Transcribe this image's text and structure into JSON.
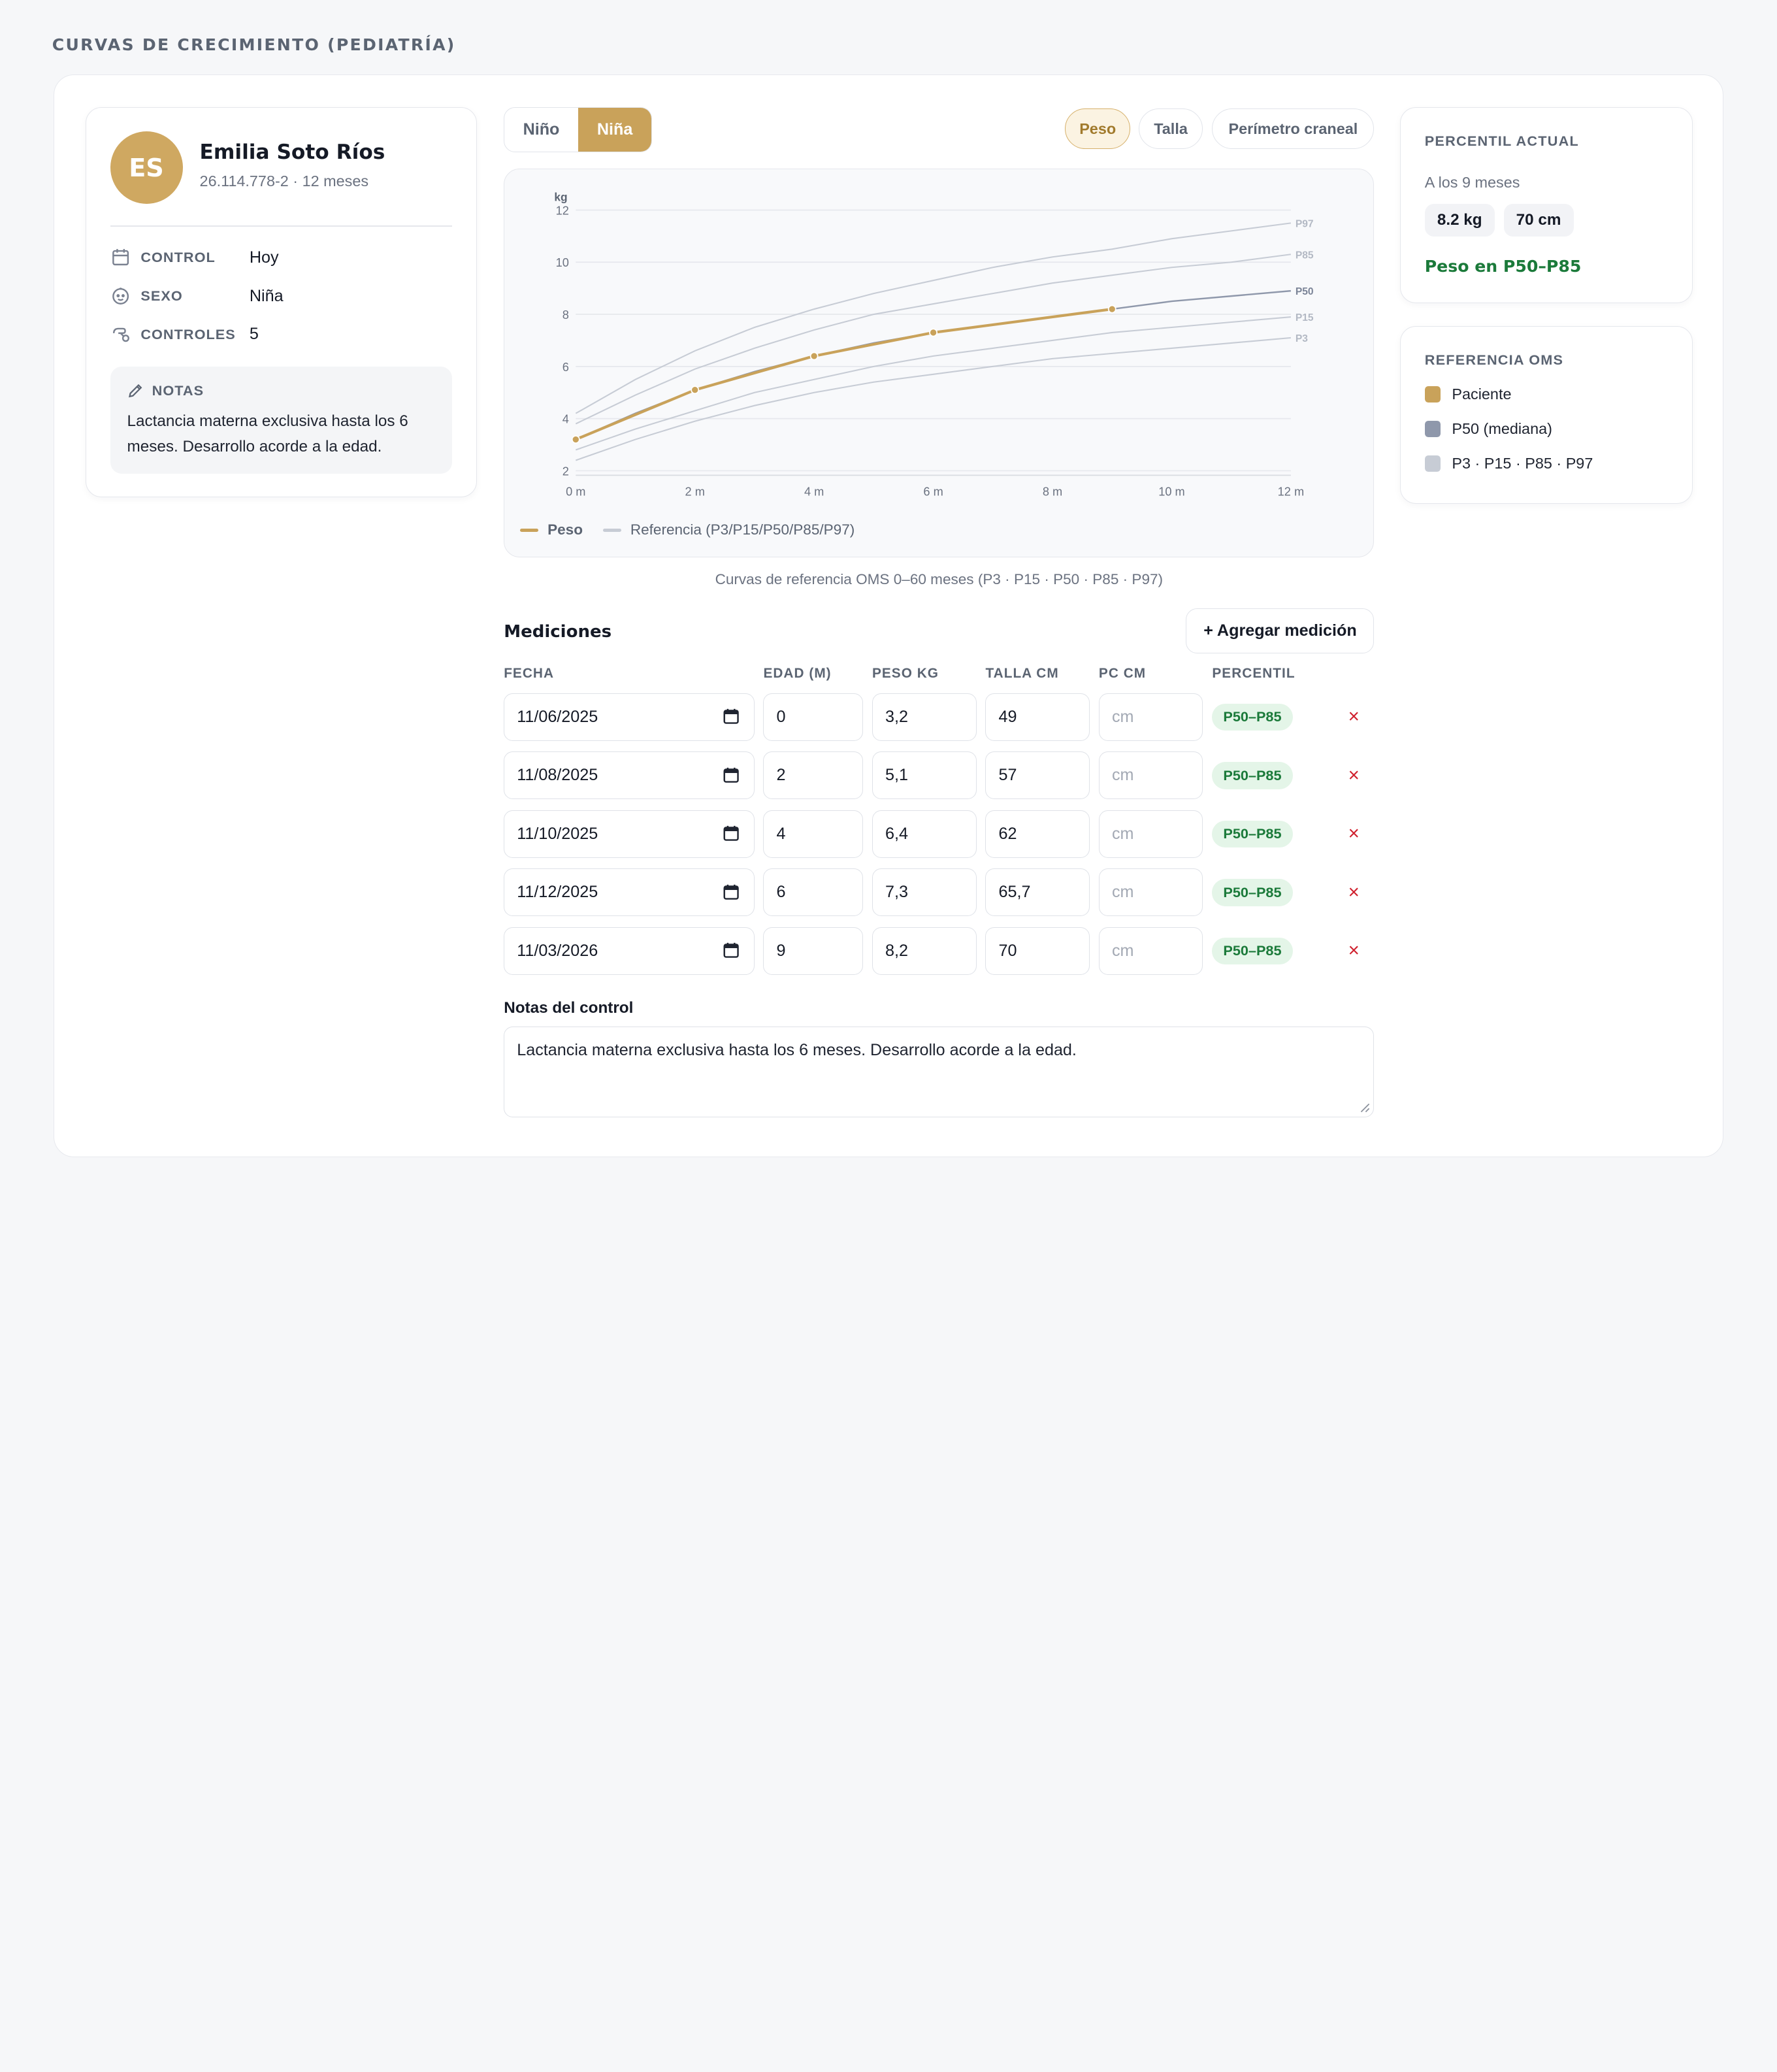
{
  "page": {
    "title": "CURVAS DE CRECIMIENTO (PEDIATRÍA)"
  },
  "patient": {
    "initials": "ES",
    "name": "Emilia Soto Ríos",
    "meta": "26.114.778-2 · 12 meses",
    "info": [
      {
        "icon": "calendar-icon",
        "label": "CONTROL",
        "value": "Hoy"
      },
      {
        "icon": "baby-face-icon",
        "label": "SEXO",
        "value": "Niña"
      },
      {
        "icon": "pacifier-icon",
        "label": "CONTROLES",
        "value": "5"
      }
    ],
    "notes_label": "NOTAS",
    "notes_text": "Lactancia materna exclusiva hasta los 6 meses. Desarrollo acorde a la edad."
  },
  "sex_toggle": {
    "options": [
      "Niño",
      "Niña"
    ],
    "selected": "Niña"
  },
  "metric_tabs": {
    "options": [
      "Peso",
      "Talla",
      "Perímetro craneal"
    ],
    "selected": "Peso"
  },
  "chart_data": {
    "type": "line",
    "ylabel": "kg",
    "ylim": [
      2,
      12
    ],
    "yticks": [
      2,
      4,
      6,
      8,
      10,
      12
    ],
    "xlim": [
      0,
      12
    ],
    "xticks": [
      "0 m",
      "2 m",
      "4 m",
      "6 m",
      "8 m",
      "10 m",
      "12 m"
    ],
    "grid": true,
    "x": [
      0,
      1,
      2,
      3,
      4,
      5,
      6,
      7,
      8,
      9,
      10,
      11,
      12
    ],
    "series": [
      {
        "name": "P97",
        "values": [
          4.2,
          5.5,
          6.6,
          7.5,
          8.2,
          8.8,
          9.3,
          9.8,
          10.2,
          10.5,
          10.9,
          11.2,
          11.5
        ]
      },
      {
        "name": "P85",
        "values": [
          3.8,
          4.9,
          5.9,
          6.7,
          7.4,
          8.0,
          8.4,
          8.8,
          9.2,
          9.5,
          9.8,
          10.0,
          10.3
        ]
      },
      {
        "name": "P50",
        "values": [
          3.2,
          4.2,
          5.1,
          5.8,
          6.4,
          6.9,
          7.3,
          7.6,
          7.9,
          8.2,
          8.5,
          8.7,
          8.9
        ]
      },
      {
        "name": "P15",
        "values": [
          2.8,
          3.6,
          4.3,
          5.0,
          5.5,
          6.0,
          6.4,
          6.7,
          7.0,
          7.3,
          7.5,
          7.7,
          7.9
        ]
      },
      {
        "name": "P3",
        "values": [
          2.4,
          3.2,
          3.9,
          4.5,
          5.0,
          5.4,
          5.7,
          6.0,
          6.3,
          6.5,
          6.7,
          6.9,
          7.1
        ]
      }
    ],
    "patient": {
      "name": "Peso",
      "x": [
        0,
        2,
        4,
        6,
        9
      ],
      "values": [
        3.2,
        5.1,
        6.4,
        7.3,
        8.2
      ]
    },
    "legend": {
      "patient": "Peso",
      "reference": "Referencia (P3/P15/P50/P85/P97)",
      "placement": "bottom-left"
    },
    "colors": {
      "patient": "#c9a25a",
      "p50": "#8f98ab",
      "reference": "#c7ccd5"
    }
  },
  "chart_caption": "Curvas de referencia OMS 0–60 meses (P3 · P15 · P50 · P85 · P97)",
  "measurements": {
    "title": "Mediciones",
    "add_label": "+ Agregar medición",
    "columns": [
      "FECHA",
      "EDAD (M)",
      "PESO KG",
      "TALLA CM",
      "PC CM",
      "PERCENTIL"
    ],
    "pc_placeholder": "cm",
    "rows": [
      {
        "fecha": "11/06/2025",
        "edad": "0",
        "peso": "3,2",
        "talla": "49",
        "pc": "",
        "percentil": "P50–P85"
      },
      {
        "fecha": "11/08/2025",
        "edad": "2",
        "peso": "5,1",
        "talla": "57",
        "pc": "",
        "percentil": "P50–P85"
      },
      {
        "fecha": "11/10/2025",
        "edad": "4",
        "peso": "6,4",
        "talla": "62",
        "pc": "",
        "percentil": "P50–P85"
      },
      {
        "fecha": "11/12/2025",
        "edad": "6",
        "peso": "7,3",
        "talla": "65,7",
        "pc": "",
        "percentil": "P50–P85"
      },
      {
        "fecha": "11/03/2026",
        "edad": "9",
        "peso": "8,2",
        "talla": "70",
        "pc": "",
        "percentil": "P50–P85"
      }
    ],
    "delete_glyph": "×"
  },
  "control_notes": {
    "label": "Notas del control",
    "value": "Lactancia materna exclusiva hasta los 6 meses. Desarrollo acorde a la edad."
  },
  "current_percentile": {
    "title": "PERCENTIL ACTUAL",
    "subtitle": "A los 9 meses",
    "weight": "8.2 kg",
    "height": "70 cm",
    "status": "Peso en P50–P85"
  },
  "reference": {
    "title": "REFERENCIA OMS",
    "items": [
      {
        "label": "Paciente",
        "color": "#c9a25a"
      },
      {
        "label": "P50 (mediana)",
        "color": "#8f98ab"
      },
      {
        "label": "P3 · P15 · P85 · P97",
        "color": "#c7ccd5"
      }
    ]
  }
}
